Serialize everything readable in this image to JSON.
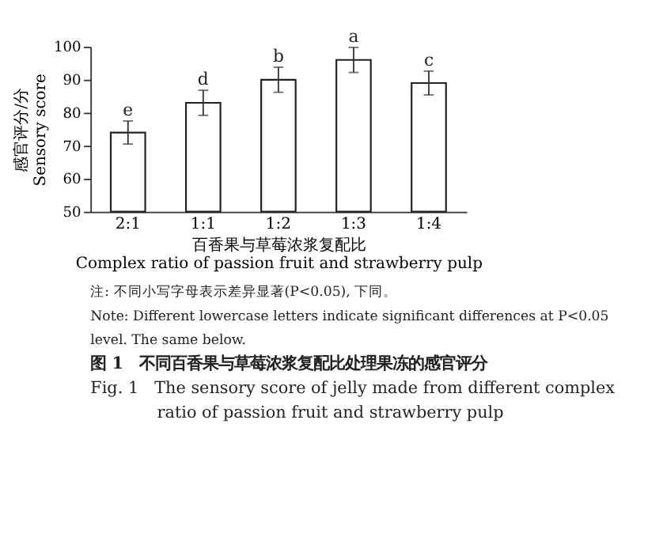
{
  "chart_data": {
    "type": "bar",
    "title": "图 1　不同百香果与草莓浓浆复配比处理果冻的感官评分",
    "subtitle": "Fig. 1　The sensory score of jelly made from different complex ratio of passion fruit and strawberry pulp",
    "xlabel": "百香果与草莓浓浆复配比\nComplex ratio of passion fruit and strawberry pulp",
    "ylabel": "感官评分/分\nSensory score",
    "categories": [
      "2:1",
      "1:1",
      "1:2",
      "1:3",
      "1:4"
    ],
    "values": [
      74,
      83,
      90,
      96,
      89
    ],
    "errors": [
      3.5,
      3.8,
      3.8,
      3.8,
      3.6
    ],
    "color": "#ffffff",
    "ylim": [
      50,
      100
    ],
    "yticks": [
      50,
      60,
      70,
      80,
      90,
      100
    ],
    "grid": false,
    "annotations": [
      {
        "text": "e",
        "x": "2:1",
        "y": 77.5
      },
      {
        "text": "d",
        "x": "1:1",
        "y": 86.8
      },
      {
        "text": "b",
        "x": "1:2",
        "y": 93.8
      },
      {
        "text": "a",
        "x": "1:3",
        "y": 99.8
      },
      {
        "text": "c",
        "x": "1:4",
        "y": 92.6
      },
      "注: 不同小写字母表示差异显著(P<0.05), 下同。",
      "Note: Different lowercase letters indicate significant differences at P<0.05 level. The same below."
    ]
  }
}
